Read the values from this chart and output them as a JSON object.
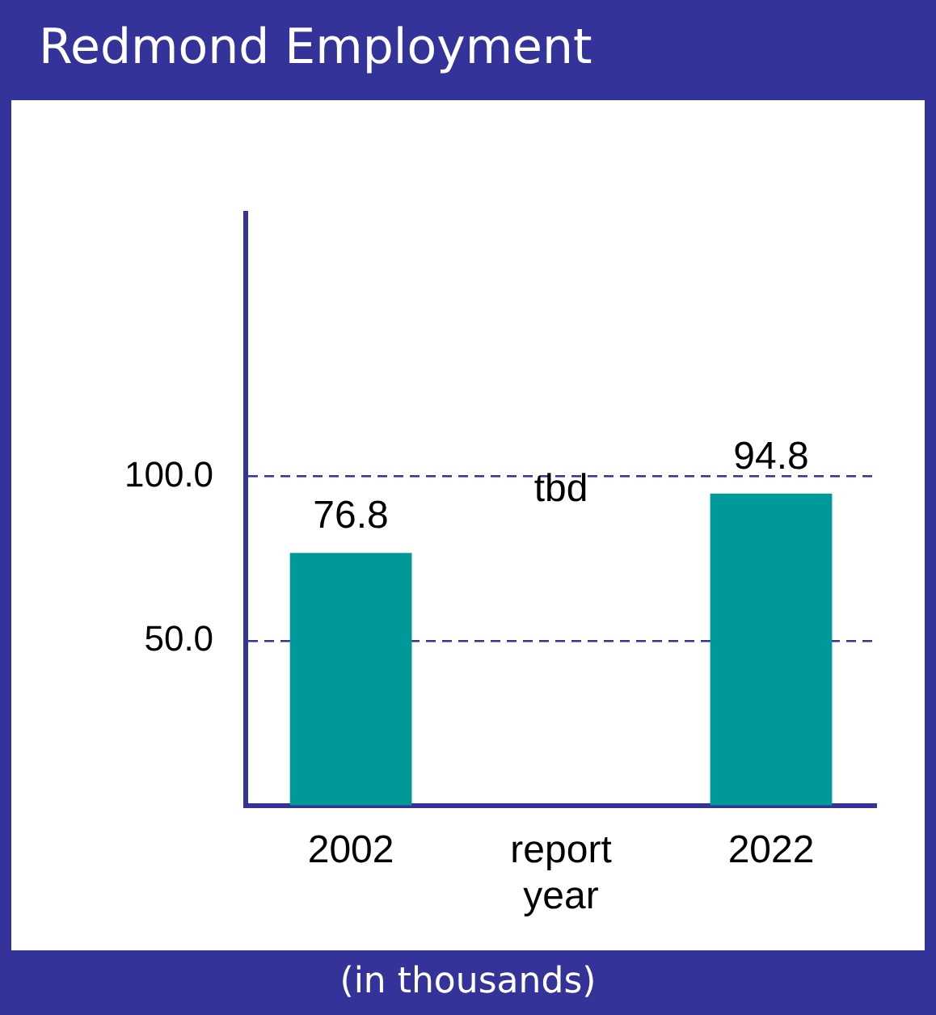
{
  "chart_data": {
    "type": "bar",
    "title": "Redmond Employment",
    "annotations": [
      "(in thousands)"
    ],
    "categories": [
      "2002",
      "report year",
      "2022"
    ],
    "values": [
      76.8,
      null,
      94.8
    ],
    "value_labels": [
      "76.8",
      "tbd",
      "94.8"
    ],
    "color": "#009999",
    "ylim": [
      0,
      180
    ],
    "yticks": [
      {
        "value": 50,
        "label": "50.0"
      },
      {
        "value": 100,
        "label": "100.0"
      }
    ],
    "grid": "y"
  }
}
